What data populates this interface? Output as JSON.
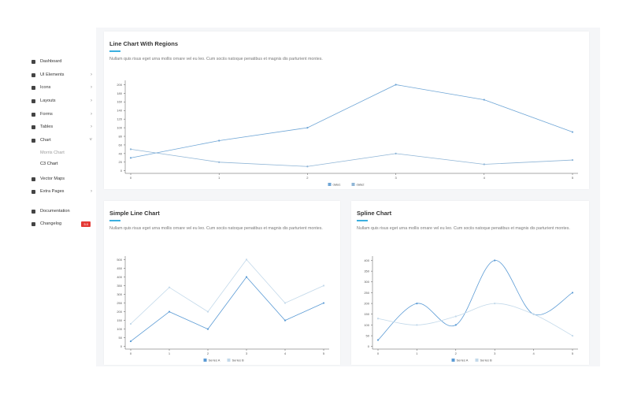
{
  "sidebar": {
    "items": [
      {
        "label": "Dashboard",
        "submenu": false
      },
      {
        "label": "UI Elements",
        "submenu": true
      },
      {
        "label": "Icons",
        "submenu": true
      },
      {
        "label": "Layouts",
        "submenu": true
      },
      {
        "label": "Forms",
        "submenu": true
      },
      {
        "label": "Tables",
        "submenu": true
      },
      {
        "label": "Chart",
        "submenu": true,
        "open": true,
        "children": [
          {
            "label": "Morris Chart"
          },
          {
            "label": "C3 Chart",
            "active": true
          }
        ]
      },
      {
        "label": "Vector Maps",
        "submenu": false
      },
      {
        "label": "Extra Pages",
        "submenu": true
      },
      {
        "label": "Documentation",
        "submenu": false
      },
      {
        "label": "Changelog",
        "submenu": false,
        "badge": "5.0"
      }
    ]
  },
  "chart_data": [
    {
      "type": "line",
      "title": "Line Chart With Regions",
      "subtitle": "Nullam quis risus eget urna mollis ornare vel eu leo. Cum sociis natoque penatibus et magnis dis parturient montes.",
      "x": [
        0,
        1,
        2,
        3,
        4,
        5
      ],
      "xlim": [
        0,
        5
      ],
      "xticks": [
        0,
        1,
        2,
        3,
        4,
        5
      ],
      "ylim": [
        -6,
        210
      ],
      "yticks": [
        0,
        20,
        40,
        60,
        80,
        100,
        120,
        140,
        160,
        180,
        200
      ],
      "series": [
        {
          "name": "data1",
          "color": "#6fa6d6",
          "values": [
            30,
            70,
            100,
            200,
            165,
            90
          ]
        },
        {
          "name": "data2",
          "color": "#8fb5d6",
          "values": [
            50,
            20,
            10,
            40,
            15,
            25
          ]
        }
      ]
    },
    {
      "type": "line",
      "title": "Simple Line Chart",
      "subtitle": "Nullam quis risus eget urna mollis ornare vel eu leo. Cum sociis natoque penatibus et magnis dis parturient montes.",
      "x": [
        0,
        1,
        2,
        3,
        4,
        5
      ],
      "xlim": [
        0,
        5
      ],
      "xticks": [
        0,
        1,
        2,
        3,
        4,
        5
      ],
      "ylim": [
        -15,
        520
      ],
      "yticks": [
        0,
        50,
        100,
        150,
        200,
        250,
        300,
        350,
        400,
        450,
        500
      ],
      "series": [
        {
          "name": "Series A",
          "color": "#5b9bd5",
          "values": [
            30,
            200,
            100,
            400,
            150,
            250
          ]
        },
        {
          "name": "Series B",
          "color": "#c3d9ea",
          "values": [
            130,
            340,
            200,
            500,
            250,
            350
          ]
        }
      ]
    },
    {
      "type": "spline",
      "title": "Spline Chart",
      "subtitle": "Nullam quis risus eget urna mollis ornare vel eu leo. Cum sociis natoque penatibus et magnis dis parturient montes.",
      "x": [
        0,
        1,
        2,
        3,
        4,
        5
      ],
      "xlim": [
        0,
        5
      ],
      "xticks": [
        0,
        1,
        2,
        3,
        4,
        5
      ],
      "ylim": [
        -12,
        420
      ],
      "yticks": [
        0,
        50,
        100,
        150,
        200,
        250,
        300,
        350,
        400
      ],
      "series": [
        {
          "name": "Series A",
          "color": "#5b9bd5",
          "values": [
            30,
            200,
            100,
            400,
            150,
            250
          ]
        },
        {
          "name": "Series B",
          "color": "#c3d9ea",
          "values": [
            130,
            100,
            140,
            200,
            150,
            50
          ]
        }
      ]
    }
  ]
}
